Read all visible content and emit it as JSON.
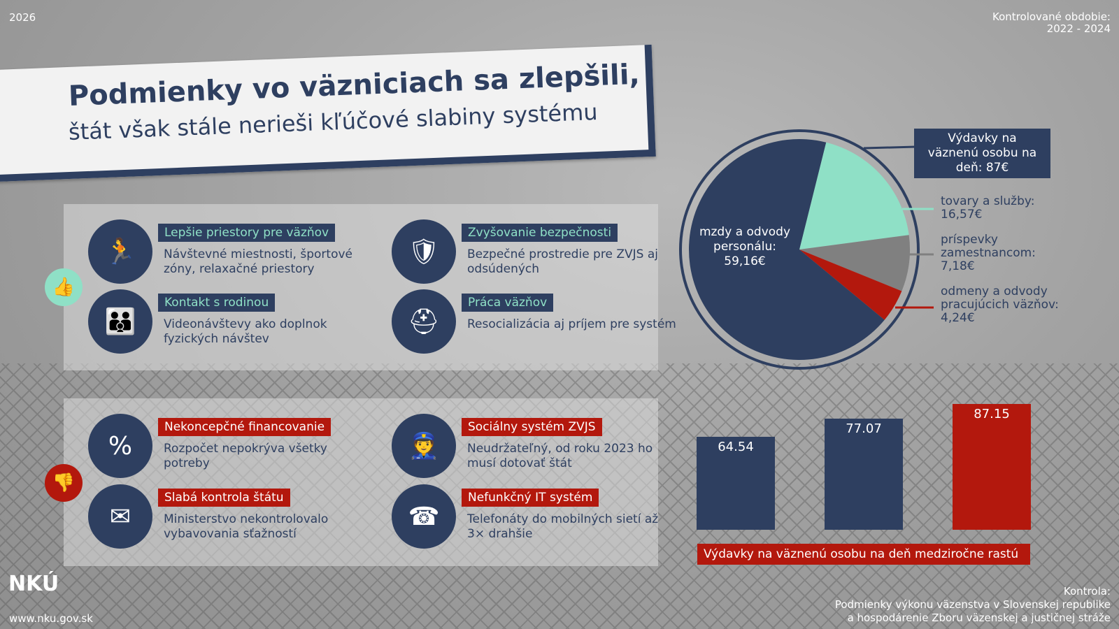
{
  "header": {
    "year": "2026",
    "period_label": "Kontrolované obdobie:",
    "period": "2022 - 2024"
  },
  "title": {
    "line1": "Podmienky vo väzniciach sa zlepšili,",
    "line2": "štát však stále nerieši kľúčové slabiny systému"
  },
  "positives": {
    "icon": "thumbs-up-icon",
    "items": [
      {
        "title": "Lepšie priestory pre väzňov",
        "desc": "Návštevné miestnosti, športové zóny, relaxačné priestory",
        "icon": "sports-icon"
      },
      {
        "title": "Zvyšovanie bezpečnosti",
        "desc": "Bezpečné prostredie pre ZVJS aj odsúdených",
        "icon": "shield-hands-icon"
      },
      {
        "title": "Kontakt s rodinou",
        "desc": "Videonávštevy ako doplnok fyzických návštev",
        "icon": "family-icon"
      },
      {
        "title": "Práca väzňov",
        "desc": "Resocializácia aj príjem pre systém",
        "icon": "worker-icon"
      }
    ]
  },
  "negatives": {
    "icon": "thumbs-down-icon",
    "items": [
      {
        "title": "Nekoncepčné financovanie",
        "desc": "Rozpočet nepokrýva všetky potreby",
        "icon": "percent-chart-icon"
      },
      {
        "title": "Sociálny systém ZVJS",
        "desc": "Neudržateľný, od roku 2023 ho musí dotovať štát",
        "icon": "officer-icon"
      },
      {
        "title": "Slabá kontrola štátu",
        "desc": "Ministerstvo nekontrolovalo vybavovania sťažností",
        "icon": "warning-mail-icon"
      },
      {
        "title": "Nefunkčný IT systém",
        "desc": "Telefonáty do mobilných sietí až 3× drahšie",
        "icon": "angry-phone-icon"
      }
    ]
  },
  "colors": {
    "navy": "#2e3f60",
    "mint": "#8fe0c6",
    "gray": "#808080",
    "red": "#b3180d"
  },
  "chart_data": [
    {
      "type": "pie",
      "title": "Výdavky na väznenú osobu na deň: 87€",
      "slices": [
        {
          "label": "mzdy a odvody personálu: 59,16€",
          "value": 59.16,
          "color": "#2e3f60"
        },
        {
          "label": "tovary a služby: 16,57€",
          "value": 16.57,
          "color": "#8fe0c6"
        },
        {
          "label": "príspevky zamestnancom: 7,18€",
          "value": 7.18,
          "color": "#808080"
        },
        {
          "label": "odmeny a odvody pracujúcich väzňov: 4,24€",
          "value": 4.24,
          "color": "#b3180d"
        }
      ]
    },
    {
      "type": "bar",
      "title": "Výdavky na väznenú osobu na deň medziročne rastú",
      "values": [
        64.54,
        77.07,
        87.15
      ],
      "labels": [
        "64.54",
        "77.07",
        "87.15"
      ],
      "colors": [
        "#2e3f60",
        "#2e3f60",
        "#b3180d"
      ],
      "ylim": [
        0,
        90
      ]
    }
  ],
  "footer": {
    "logo": "NKÚ",
    "url": "www.nku.gov.sk",
    "control_label": "Kontrola:",
    "control_line1": "Podmienky výkonu väzenstva v Slovenskej republike",
    "control_line2": "a hospodárenie Zboru väzenskej a justičnej stráže"
  }
}
